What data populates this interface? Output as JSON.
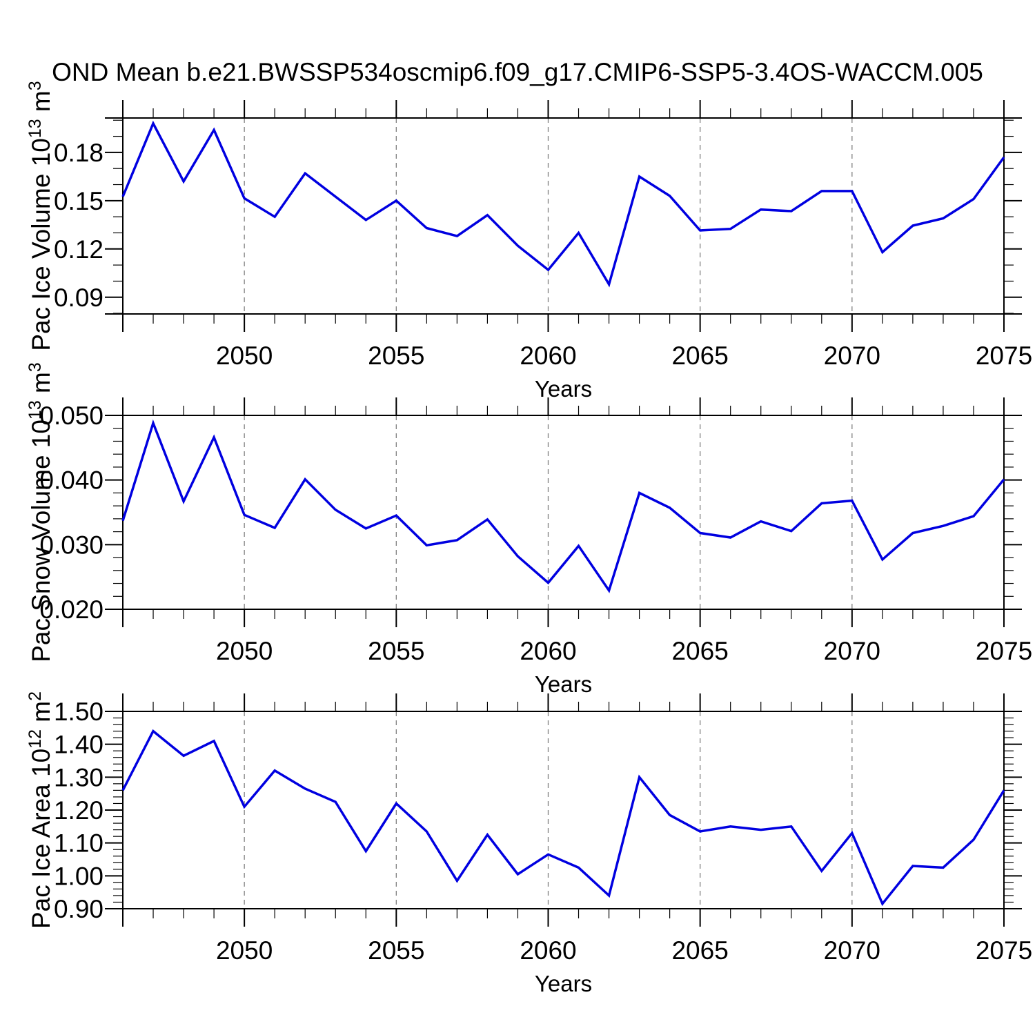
{
  "title": "OND Mean b.e21.BWSSP534oscmip6.f09_g17.CMIP6-SSP5-3.4OS-WACCM.005",
  "colors": {
    "line": "#0000e0",
    "axis": "#000000",
    "grid": "#808080",
    "background": "#ffffff"
  },
  "chart_data": [
    {
      "type": "line",
      "title": "",
      "xlabel": "Years",
      "ylabel": "Pac Ice Volume 10^13 m^3",
      "ylabel_rich": [
        [
          "Pac Ice Volume 10",
          false
        ],
        [
          "13",
          true
        ],
        [
          " m",
          false
        ],
        [
          "3",
          true
        ]
      ],
      "x": [
        2046,
        2047,
        2048,
        2049,
        2050,
        2051,
        2052,
        2053,
        2054,
        2055,
        2056,
        2057,
        2058,
        2059,
        2060,
        2061,
        2062,
        2063,
        2064,
        2065,
        2066,
        2067,
        2068,
        2069,
        2070,
        2071,
        2072,
        2073,
        2074,
        2075
      ],
      "values": [
        0.1525,
        0.198,
        0.162,
        0.194,
        0.1515,
        0.14,
        0.167,
        0.1525,
        0.138,
        0.15,
        0.133,
        0.128,
        0.141,
        0.122,
        0.107,
        0.13,
        0.098,
        0.165,
        0.153,
        0.1315,
        0.1325,
        0.1445,
        0.1435,
        0.156,
        0.156,
        0.118,
        0.1345,
        0.139,
        0.151,
        0.177
      ],
      "xlim": [
        2046,
        2075
      ],
      "ylim": [
        0.0796,
        0.2014
      ],
      "xticks": [
        2050,
        2055,
        2060,
        2065,
        2070,
        2075
      ],
      "xtick_labels": [
        "2050",
        "2055",
        "2060",
        "2065",
        "2070",
        "2075"
      ],
      "xtick_minor_step": 1,
      "yticks": [
        0.09,
        0.12,
        0.15,
        0.18
      ],
      "ytick_labels": [
        "0.09",
        "0.12",
        "0.15",
        "0.18"
      ],
      "ytick_minor_step": 0.01,
      "grid_years": [
        2050,
        2055,
        2060,
        2065,
        2070
      ],
      "grid_style": "vertical-dashed",
      "legend": "none"
    },
    {
      "type": "line",
      "title": "",
      "xlabel": "Years",
      "ylabel": "Pac Snow Volume 10^13 m^3",
      "ylabel_rich": [
        [
          "Pac Snow Volume 10",
          false
        ],
        [
          "13",
          true
        ],
        [
          " m",
          false
        ],
        [
          "3",
          true
        ]
      ],
      "x": [
        2046,
        2047,
        2048,
        2049,
        2050,
        2051,
        2052,
        2053,
        2054,
        2055,
        2056,
        2057,
        2058,
        2059,
        2060,
        2061,
        2062,
        2063,
        2064,
        2065,
        2066,
        2067,
        2068,
        2069,
        2070,
        2071,
        2072,
        2073,
        2074,
        2075
      ],
      "values": [
        0.0337,
        0.0488,
        0.0367,
        0.0466,
        0.0346,
        0.0326,
        0.0401,
        0.0354,
        0.0325,
        0.0345,
        0.0299,
        0.0307,
        0.0339,
        0.0282,
        0.0241,
        0.0298,
        0.0229,
        0.038,
        0.0357,
        0.0318,
        0.0311,
        0.0336,
        0.0321,
        0.0364,
        0.0368,
        0.0277,
        0.0318,
        0.0329,
        0.0344,
        0.0401
      ],
      "xlim": [
        2046,
        2075
      ],
      "ylim": [
        0.02,
        0.05
      ],
      "xticks": [
        2050,
        2055,
        2060,
        2065,
        2070,
        2075
      ],
      "xtick_labels": [
        "2050",
        "2055",
        "2060",
        "2065",
        "2070",
        "2075"
      ],
      "xtick_minor_step": 1,
      "yticks": [
        0.02,
        0.03,
        0.04,
        0.05
      ],
      "ytick_labels": [
        "0.020",
        "0.030",
        "0.040",
        "0.050"
      ],
      "ytick_minor_step": 0.002,
      "grid_years": [
        2050,
        2055,
        2060,
        2065,
        2070
      ],
      "grid_style": "vertical-dashed",
      "legend": "none"
    },
    {
      "type": "line",
      "title": "",
      "xlabel": "Years",
      "ylabel": "Pac Ice Area 10^12 m^2",
      "ylabel_rich": [
        [
          "Pac Ice Area 10",
          false
        ],
        [
          "12",
          true
        ],
        [
          " m",
          false
        ],
        [
          "2",
          true
        ]
      ],
      "x": [
        2046,
        2047,
        2048,
        2049,
        2050,
        2051,
        2052,
        2053,
        2054,
        2055,
        2056,
        2057,
        2058,
        2059,
        2060,
        2061,
        2062,
        2063,
        2064,
        2065,
        2066,
        2067,
        2068,
        2069,
        2070,
        2071,
        2072,
        2073,
        2074,
        2075
      ],
      "values": [
        1.26,
        1.44,
        1.365,
        1.41,
        1.21,
        1.32,
        1.265,
        1.225,
        1.075,
        1.22,
        1.135,
        0.985,
        1.125,
        1.005,
        1.065,
        1.025,
        0.94,
        1.3,
        1.185,
        1.135,
        1.15,
        1.14,
        1.15,
        1.015,
        1.13,
        0.915,
        1.03,
        1.025,
        1.11,
        1.26
      ],
      "xlim": [
        2046,
        2075
      ],
      "ylim": [
        0.9,
        1.5
      ],
      "xticks": [
        2050,
        2055,
        2060,
        2065,
        2070,
        2075
      ],
      "xtick_labels": [
        "2050",
        "2055",
        "2060",
        "2065",
        "2070",
        "2075"
      ],
      "xtick_minor_step": 1,
      "yticks": [
        0.9,
        1.0,
        1.1,
        1.2,
        1.3,
        1.4,
        1.5
      ],
      "ytick_labels": [
        "0.90",
        "1.00",
        "1.10",
        "1.20",
        "1.30",
        "1.40",
        "1.50"
      ],
      "ytick_minor_step": 0.02,
      "grid_years": [
        2050,
        2055,
        2060,
        2065,
        2070
      ],
      "grid_style": "vertical-dashed",
      "legend": "none"
    }
  ]
}
